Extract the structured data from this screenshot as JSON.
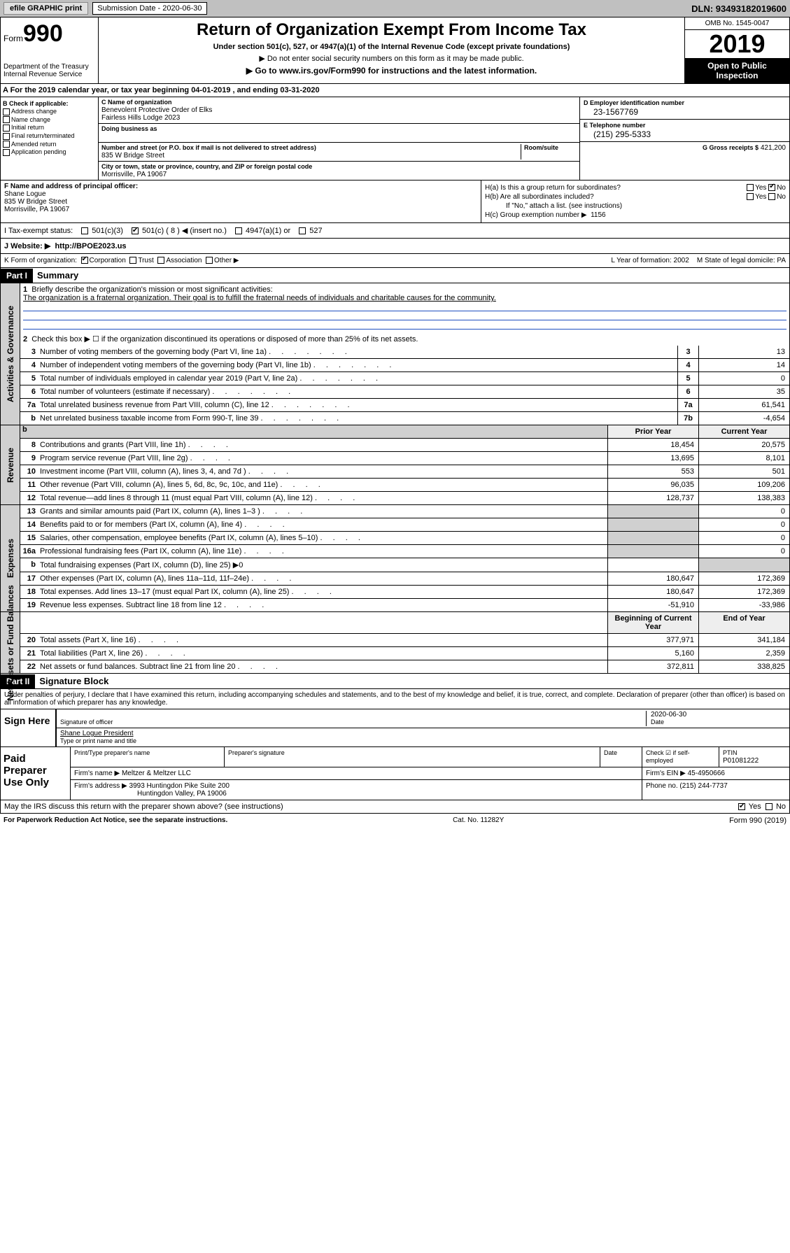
{
  "topbar": {
    "efile": "efile GRAPHIC print",
    "sub_label": "Submission Date - 2020-06-30",
    "dln": "DLN: 93493182019600"
  },
  "header": {
    "form": "Form",
    "form_num": "990",
    "dept": "Department of the Treasury\nInternal Revenue Service",
    "title": "Return of Organization Exempt From Income Tax",
    "subtitle": "Under section 501(c), 527, or 4947(a)(1) of the Internal Revenue Code (except private foundations)",
    "note": "▶ Do not enter social security numbers on this form as it may be made public.",
    "linktext": "▶ Go to www.irs.gov/Form990 for instructions and the latest information.",
    "omb": "OMB No. 1545-0047",
    "year": "2019",
    "open": "Open to Public Inspection"
  },
  "period": "A   For the 2019 calendar year, or tax year beginning 04-01-2019    , and ending 03-31-2020",
  "checkB": {
    "label": "B Check if applicable:",
    "items": [
      "Address change",
      "Name change",
      "Initial return",
      "Final return/terminated",
      "Amended return",
      "Application pending"
    ]
  },
  "orgC": {
    "name_lbl": "C Name of organization",
    "name": "Benevolent Protective Order of Elks\nFairless Hills Lodge 2023",
    "dba_lbl": "Doing business as",
    "addr_lbl": "Number and street (or P.O. box if mail is not delivered to street address)",
    "addr": "835 W Bridge Street",
    "room_lbl": "Room/suite",
    "city_lbl": "City or town, state or province, country, and ZIP or foreign postal code",
    "city": "Morrisville, PA  19067"
  },
  "boxD": {
    "lbl": "D Employer identification number",
    "val": "23-1567769"
  },
  "boxE": {
    "lbl": "E Telephone number",
    "val": "(215) 295-5333"
  },
  "boxG": {
    "lbl": "G Gross receipts $",
    "val": "421,200"
  },
  "boxF": {
    "lbl": "F  Name and address of principal officer:",
    "name": "Shane Logue",
    "addr1": "835 W Bridge Street",
    "addr2": "Morrisville, PA  19067"
  },
  "boxH": {
    "ha": "H(a)  Is this a group return for subordinates?",
    "ha_ans": "No",
    "hb": "H(b)  Are all subordinates included?",
    "hb_note": "If \"No,\" attach a list. (see instructions)",
    "hc": "H(c)  Group exemption number ▶",
    "hc_val": "1156"
  },
  "taxI": {
    "lbl": "I   Tax-exempt status:",
    "o1": "501(c)(3)",
    "o2": "501(c) ( 8 ) ◀ (insert no.)",
    "o3": "4947(a)(1) or",
    "o4": "527"
  },
  "webJ": {
    "lbl": "J   Website: ▶",
    "val": "http://BPOE2023.us"
  },
  "korg": {
    "lbl": "K Form of organization:",
    "opts": [
      "Corporation",
      "Trust",
      "Association",
      "Other ▶"
    ],
    "yof": "L Year of formation: 2002",
    "dom": "M State of legal domicile: PA"
  },
  "part1": {
    "hdr": "Part I",
    "title": "Summary",
    "mission_lbl": "Briefly describe the organization's mission or most significant activities:",
    "mission": "The organization is a fraternal organization. Their goal is to fulfill the fraternal needs of individuals and charitable causes for the community.",
    "line2": "Check this box ▶ ☐  if the organization discontinued its operations or disposed of more than 25% of its net assets.",
    "col_prior": "Prior Year",
    "col_curr": "Current Year",
    "col_beg": "Beginning of Current Year",
    "col_end": "End of Year",
    "act": [
      {
        "n": "3",
        "t": "Number of voting members of the governing body (Part VI, line 1a)",
        "c": "3",
        "v": "13"
      },
      {
        "n": "4",
        "t": "Number of independent voting members of the governing body (Part VI, line 1b)",
        "c": "4",
        "v": "14"
      },
      {
        "n": "5",
        "t": "Total number of individuals employed in calendar year 2019 (Part V, line 2a)",
        "c": "5",
        "v": "0"
      },
      {
        "n": "6",
        "t": "Total number of volunteers (estimate if necessary)",
        "c": "6",
        "v": "35"
      },
      {
        "n": "7a",
        "t": "Total unrelated business revenue from Part VIII, column (C), line 12",
        "c": "7a",
        "v": "61,541"
      },
      {
        "n": "b",
        "t": "Net unrelated business taxable income from Form 990-T, line 39",
        "c": "7b",
        "v": "-4,654"
      }
    ],
    "rev": [
      {
        "n": "8",
        "t": "Contributions and grants (Part VIII, line 1h)",
        "p": "18,454",
        "c": "20,575"
      },
      {
        "n": "9",
        "t": "Program service revenue (Part VIII, line 2g)",
        "p": "13,695",
        "c": "8,101"
      },
      {
        "n": "10",
        "t": "Investment income (Part VIII, column (A), lines 3, 4, and 7d )",
        "p": "553",
        "c": "501"
      },
      {
        "n": "11",
        "t": "Other revenue (Part VIII, column (A), lines 5, 6d, 8c, 9c, 10c, and 11e)",
        "p": "96,035",
        "c": "109,206"
      },
      {
        "n": "12",
        "t": "Total revenue—add lines 8 through 11 (must equal Part VIII, column (A), line 12)",
        "p": "128,737",
        "c": "138,383"
      }
    ],
    "exp": [
      {
        "n": "13",
        "t": "Grants and similar amounts paid (Part IX, column (A), lines 1–3 )",
        "p": "",
        "c": "0"
      },
      {
        "n": "14",
        "t": "Benefits paid to or for members (Part IX, column (A), line 4)",
        "p": "",
        "c": "0"
      },
      {
        "n": "15",
        "t": "Salaries, other compensation, employee benefits (Part IX, column (A), lines 5–10)",
        "p": "",
        "c": "0"
      },
      {
        "n": "16a",
        "t": "Professional fundraising fees (Part IX, column (A), line 11e)",
        "p": "",
        "c": "0"
      },
      {
        "n": "b",
        "t": "Total fundraising expenses (Part IX, column (D), line 25) ▶0",
        "p": "",
        "c": ""
      },
      {
        "n": "17",
        "t": "Other expenses (Part IX, column (A), lines 11a–11d, 11f–24e)",
        "p": "180,647",
        "c": "172,369"
      },
      {
        "n": "18",
        "t": "Total expenses. Add lines 13–17 (must equal Part IX, column (A), line 25)",
        "p": "180,647",
        "c": "172,369"
      },
      {
        "n": "19",
        "t": "Revenue less expenses. Subtract line 18 from line 12",
        "p": "-51,910",
        "c": "-33,986"
      }
    ],
    "net": [
      {
        "n": "20",
        "t": "Total assets (Part X, line 16)",
        "p": "377,971",
        "c": "341,184"
      },
      {
        "n": "21",
        "t": "Total liabilities (Part X, line 26)",
        "p": "5,160",
        "c": "2,359"
      },
      {
        "n": "22",
        "t": "Net assets or fund balances. Subtract line 21 from line 20",
        "p": "372,811",
        "c": "338,825"
      }
    ]
  },
  "part2": {
    "hdr": "Part II",
    "title": "Signature Block",
    "decl": "Under penalties of perjury, I declare that I have examined this return, including accompanying schedules and statements, and to the best of my knowledge and belief, it is true, correct, and complete. Declaration of preparer (other than officer) is based on all information of which preparer has any knowledge.",
    "sign_here": "Sign Here",
    "sig_of": "Signature of officer",
    "date": "2020-06-30",
    "date_lbl": "Date",
    "officer": "Shane Logue  President",
    "officer_lbl": "Type or print name and title",
    "paid": "Paid Preparer Use Only",
    "p_name_lbl": "Print/Type preparer's name",
    "p_sig_lbl": "Preparer's signature",
    "p_date_lbl": "Date",
    "p_self": "Check ☑ if self-employed",
    "ptin_lbl": "PTIN",
    "ptin": "P01081222",
    "firm_lbl": "Firm's name   ▶",
    "firm": "Meltzer & Meltzer LLC",
    "fein_lbl": "Firm's EIN ▶",
    "fein": "45-4950666",
    "faddr_lbl": "Firm's address ▶",
    "faddr": "3993 Huntingdon Pike Suite 200",
    "faddr2": "Huntingdon Valley, PA  19006",
    "phone_lbl": "Phone no.",
    "phone": "(215) 244-7737",
    "discuss": "May the IRS discuss this return with the preparer shown above? (see instructions)",
    "discuss_yes": "Yes",
    "discuss_no": "No"
  },
  "footer": {
    "pra": "For Paperwork Reduction Act Notice, see the separate instructions.",
    "cat": "Cat. No. 11282Y",
    "form": "Form 990 (2019)"
  },
  "vtabs": {
    "act": "Activities & Governance",
    "rev": "Revenue",
    "exp": "Expenses",
    "net": "Net Assets or Fund Balances"
  }
}
